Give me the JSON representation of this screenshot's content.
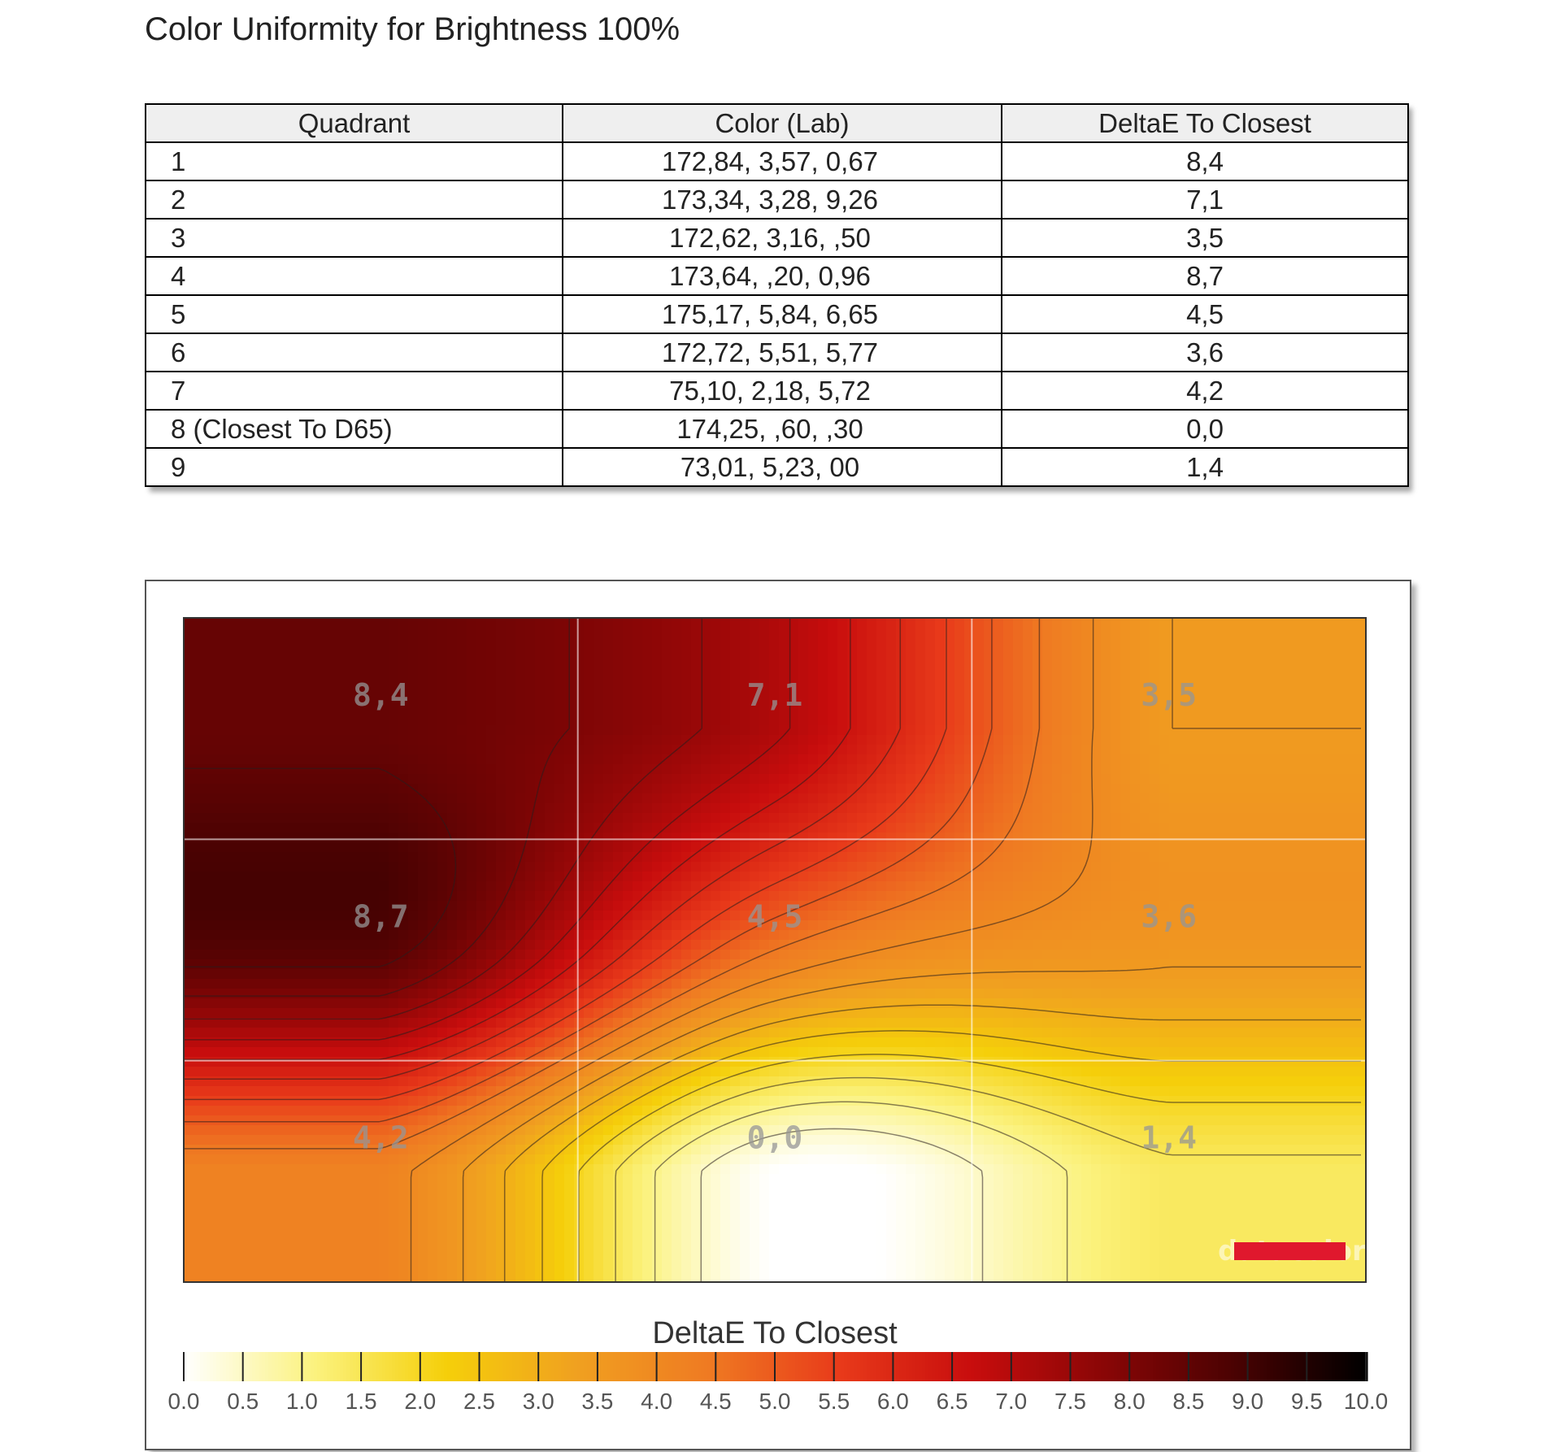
{
  "page_title": "Color Uniformity for Brightness 100%",
  "table": {
    "headers": [
      "Quadrant",
      "Color (Lab)",
      "DeltaE To Closest"
    ],
    "rows": [
      {
        "quadrant": "1",
        "color_lab": "172,84,   3,57,   0,67",
        "deltae": "8,4"
      },
      {
        "quadrant": "2",
        "color_lab": "173,34,   3,28,   9,26",
        "deltae": "7,1"
      },
      {
        "quadrant": "3",
        "color_lab": "172,62,   3,16,    ,50",
        "deltae": "3,5"
      },
      {
        "quadrant": "4",
        "color_lab": "173,64,    ,20,   0,96",
        "deltae": "8,7"
      },
      {
        "quadrant": "5",
        "color_lab": "175,17,   5,84,   6,65",
        "deltae": "4,5"
      },
      {
        "quadrant": "6",
        "color_lab": "172,72,   5,51,   5,77",
        "deltae": "3,6"
      },
      {
        "quadrant": "7",
        "color_lab": "75,10,   2,18,   5,72",
        "deltae": "4,2"
      },
      {
        "quadrant": "8 (Closest To D65)",
        "color_lab": "174,25,    ,60,    ,30",
        "deltae": "0,0"
      },
      {
        "quadrant": "9",
        "color_lab": "73,01,   5,23,     00",
        "deltae": "1,4"
      }
    ]
  },
  "chart_data": {
    "type": "heatmap",
    "title": "DeltaE To Closest",
    "grid": {
      "rows": 3,
      "cols": 3
    },
    "values": [
      [
        8.4,
        7.1,
        3.5
      ],
      [
        8.7,
        4.5,
        3.6
      ],
      [
        4.2,
        0.0,
        1.4
      ]
    ],
    "cell_labels": [
      [
        "8,4",
        "7,1",
        "3,5"
      ],
      [
        "8,7",
        "4,5",
        "3,6"
      ],
      [
        "4,2",
        "0,0",
        "1,4"
      ]
    ],
    "scale": {
      "min": 0.0,
      "max": 10.0,
      "ticks": [
        "0.0",
        "0.5",
        "1.0",
        "1.5",
        "2.0",
        "2.5",
        "3.0",
        "3.5",
        "4.0",
        "4.5",
        "5.0",
        "5.5",
        "6.0",
        "6.5",
        "7.0",
        "7.5",
        "8.0",
        "8.5",
        "9.0",
        "9.5",
        "10.0"
      ],
      "colors": [
        "#ffffff",
        "#fbf27e",
        "#f5cf0a",
        "#f0a020",
        "#ef7a22",
        "#e83a1a",
        "#c80d0d",
        "#8a0606",
        "#4a0202",
        "#000000"
      ]
    },
    "watermark": "datacolor"
  }
}
